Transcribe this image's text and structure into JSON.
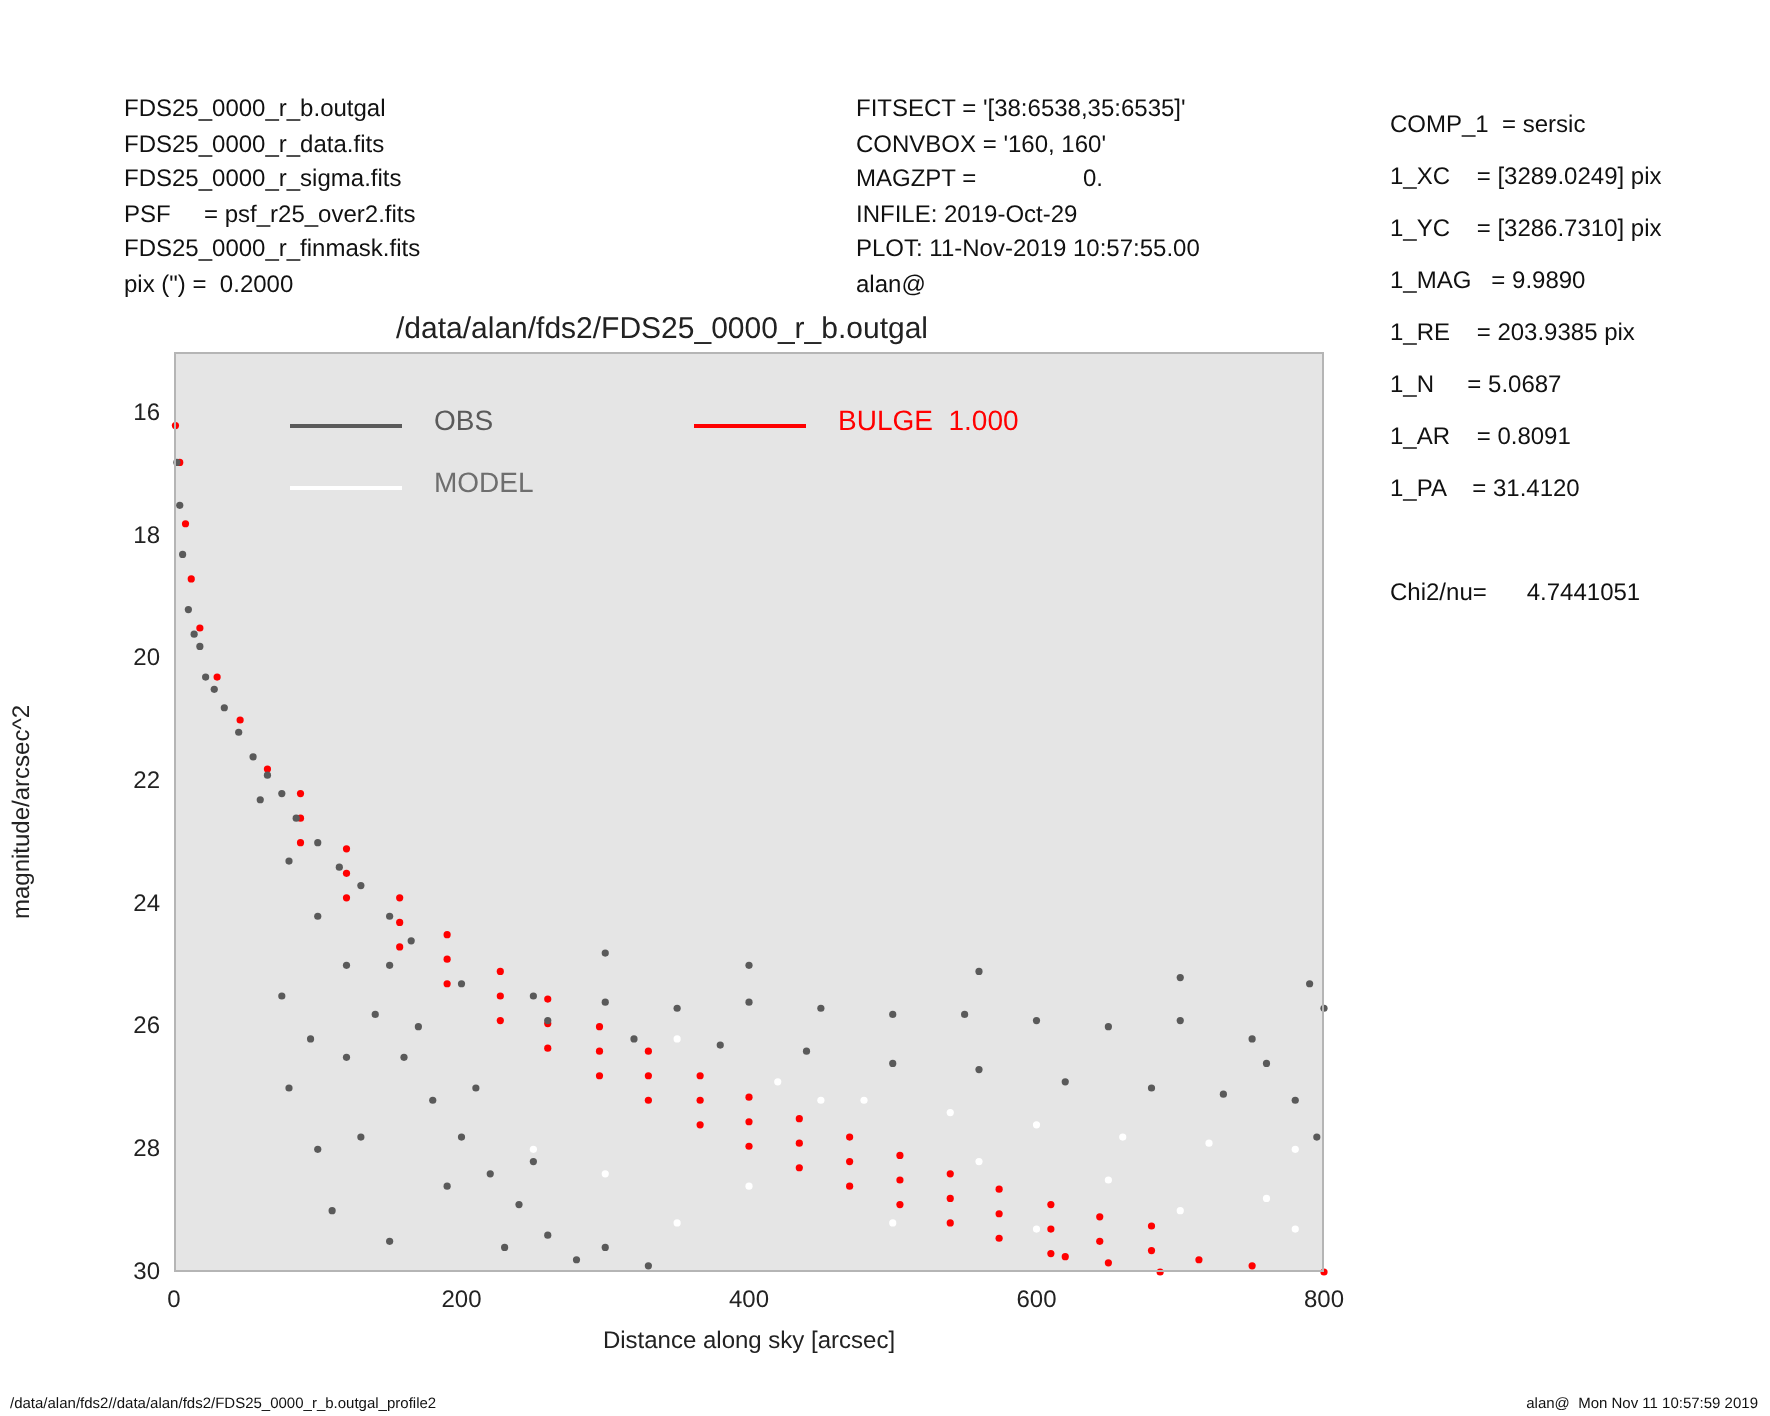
{
  "chart_data": {
    "type": "scatter",
    "title": "/data/alan/fds2/FDS25_0000_r_b.outgal",
    "xlabel": "Distance along sky [arcsec]",
    "ylabel": "magnitude/arcsec^2",
    "xlim": [
      0,
      800
    ],
    "xticks": [
      0,
      200,
      400,
      600,
      800
    ],
    "ylim": [
      30,
      15
    ],
    "yticks": [
      16,
      18,
      20,
      22,
      24,
      26,
      28,
      30
    ],
    "legend": "top left",
    "marker": "circle",
    "series": [
      {
        "name": "OBS",
        "color": "#5a5a5a",
        "x": [
          2,
          4,
          6,
          10,
          14,
          18,
          22,
          28,
          35,
          45,
          55,
          65,
          75,
          85,
          100,
          115,
          130,
          150,
          165,
          60,
          80,
          100,
          120,
          140,
          160,
          180,
          200,
          220,
          240,
          260,
          280,
          190,
          230,
          170,
          210,
          250,
          300,
          330,
          75,
          80,
          100,
          110,
          120,
          130,
          150,
          95,
          150,
          200,
          250,
          300,
          350,
          400,
          450,
          500,
          550,
          600,
          650,
          700,
          750,
          790,
          260,
          320,
          380,
          440,
          500,
          560,
          620,
          680,
          730,
          780,
          795,
          760,
          300,
          400,
          560,
          700,
          800
        ],
        "values": [
          16.8,
          17.5,
          18.3,
          19.2,
          19.6,
          19.8,
          20.3,
          20.5,
          20.8,
          21.2,
          21.6,
          21.9,
          22.2,
          22.6,
          23.0,
          23.4,
          23.7,
          24.2,
          24.6,
          22.3,
          23.3,
          24.2,
          25.0,
          25.8,
          26.5,
          27.2,
          27.8,
          28.4,
          28.9,
          29.4,
          29.8,
          28.6,
          29.6,
          26.0,
          27.0,
          28.2,
          29.6,
          29.9,
          25.5,
          27.0,
          28.0,
          29.0,
          26.5,
          27.8,
          29.5,
          26.2,
          25.0,
          25.3,
          25.5,
          25.6,
          25.7,
          25.6,
          25.7,
          25.8,
          25.8,
          25.9,
          26.0,
          25.9,
          26.2,
          25.3,
          25.9,
          26.2,
          26.3,
          26.4,
          26.6,
          26.7,
          26.9,
          27.0,
          27.1,
          27.2,
          27.8,
          26.6,
          24.8,
          25.0,
          25.1,
          25.2,
          25.7
        ]
      },
      {
        "name": "MODEL",
        "color": "#ffffff",
        "x": [
          350,
          420,
          480,
          540,
          600,
          660,
          720,
          780,
          400,
          500,
          600,
          700,
          760,
          560,
          450,
          350,
          300,
          650,
          780,
          250
        ],
        "values": [
          26.2,
          26.9,
          27.2,
          27.4,
          27.6,
          27.8,
          27.9,
          28.0,
          28.6,
          29.2,
          29.3,
          29.0,
          28.8,
          28.2,
          27.2,
          29.2,
          28.4,
          28.5,
          29.3,
          28.0
        ]
      },
      {
        "name": "BULGE  1.000",
        "color": "#ff0000",
        "x": [
          1,
          4,
          8,
          12,
          18,
          30,
          46,
          65,
          88,
          120,
          157,
          190,
          227,
          260,
          296,
          330,
          366,
          400,
          435,
          470,
          505,
          540,
          574,
          610,
          644,
          680,
          713,
          750,
          800,
          88,
          120,
          157,
          190,
          227,
          260,
          296,
          330,
          366,
          400,
          435,
          470,
          505,
          540,
          574,
          610,
          644,
          680,
          88,
          120,
          157,
          190,
          227,
          260,
          296,
          330,
          366,
          400,
          435,
          470,
          505,
          540,
          574,
          610,
          620,
          650,
          686
        ],
        "values": [
          16.2,
          16.8,
          17.8,
          18.7,
          19.5,
          20.3,
          21.0,
          21.8,
          22.6,
          23.5,
          24.3,
          24.9,
          25.5,
          25.95,
          26.4,
          26.8,
          27.2,
          27.55,
          27.9,
          28.2,
          28.5,
          28.8,
          29.05,
          29.3,
          29.5,
          29.65,
          29.8,
          29.9,
          30.0,
          22.2,
          23.1,
          23.9,
          24.5,
          25.1,
          25.55,
          26.0,
          26.4,
          26.8,
          27.15,
          27.5,
          27.8,
          28.1,
          28.4,
          28.65,
          28.9,
          29.1,
          29.25,
          23.0,
          23.9,
          24.7,
          25.3,
          25.9,
          26.35,
          26.8,
          27.2,
          27.6,
          27.95,
          28.3,
          28.6,
          28.9,
          29.2,
          29.45,
          29.7,
          29.75,
          29.85,
          30.0
        ]
      }
    ],
    "annotations": [
      "FDS25_0000_r_b.outgal\nFDS25_0000_r_data.fits\nFDS25_0000_r_sigma.fits\nPSF     = psf_r25_over2.fits\nFDS25_0000_r_finmask.fits\npix (\") =  0.2000",
      "FITSECT = '[38:6538,35:6535]'\nCONVBOX = '160, 160'\nMAGZPT =                0.\nINFILE: 2019-Oct-29\nPLOT: 11-Nov-2019 10:57:55.00\nalan@",
      "COMP_1  = sersic\n1_XC    = [3289.0249] pix\n1_YC    = [3286.7310] pix\n1_MAG   = 9.9890\n1_RE    = 203.9385 pix\n1_N     = 5.0687\n1_AR    = 0.8091\n1_PA    = 31.4120\n\nChi2/nu=      4.7441051",
      "/data/alan/fds2//data/alan/fds2/FDS25_0000_r_b.outgal_profile2",
      "alan@  Mon Nov 11 10:57:59 2019"
    ]
  }
}
